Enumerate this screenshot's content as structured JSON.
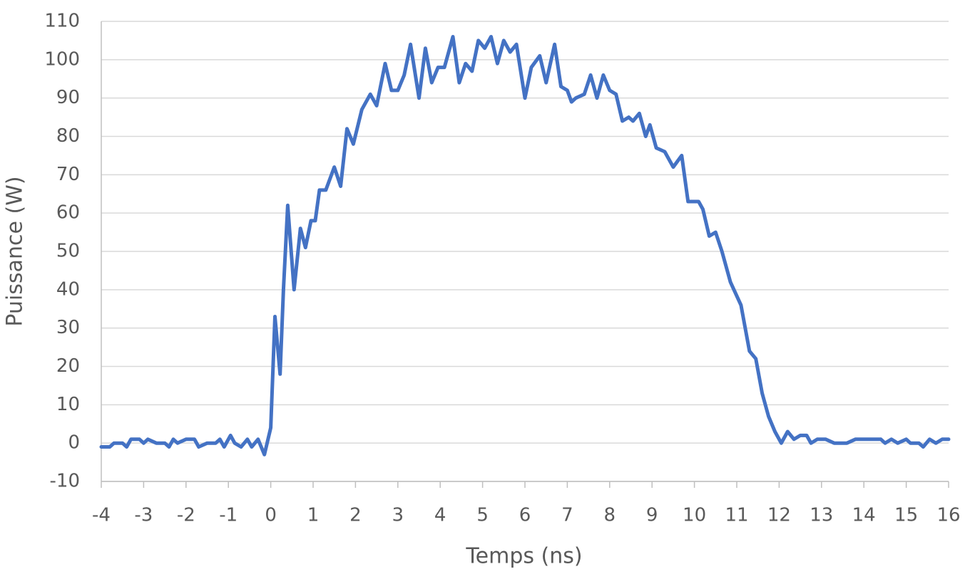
{
  "chart_data": {
    "type": "line",
    "x_label": "Temps (ns)",
    "y_label": "Puissance (W)",
    "xlim": [
      -4,
      16
    ],
    "ylim": [
      -10,
      110
    ],
    "xticks": [
      -4,
      -3,
      -2,
      -1,
      0,
      1,
      2,
      3,
      4,
      5,
      6,
      7,
      8,
      9,
      10,
      11,
      12,
      13,
      14,
      15,
      16
    ],
    "yticks": [
      -10,
      0,
      10,
      20,
      30,
      40,
      50,
      60,
      70,
      80,
      90,
      100,
      110
    ],
    "grid": true,
    "x": [
      -4,
      -3.8,
      -3.7,
      -3.5,
      -3.4,
      -3.3,
      -3.1,
      -3,
      -2.9,
      -2.7,
      -2.5,
      -2.4,
      -2.3,
      -2.2,
      -2,
      -1.8,
      -1.7,
      -1.5,
      -1.3,
      -1.2,
      -1.1,
      -0.95,
      -0.85,
      -0.7,
      -0.55,
      -0.45,
      -0.3,
      -0.15,
      0,
      0.1,
      0.22,
      0.3,
      0.4,
      0.55,
      0.7,
      0.82,
      0.95,
      1.05,
      1.15,
      1.3,
      1.5,
      1.65,
      1.8,
      1.95,
      2.15,
      2.35,
      2.5,
      2.7,
      2.85,
      3,
      3.15,
      3.3,
      3.5,
      3.65,
      3.8,
      3.95,
      4.1,
      4.3,
      4.45,
      4.6,
      4.75,
      4.9,
      5.05,
      5.2,
      5.35,
      5.5,
      5.65,
      5.8,
      6,
      6.15,
      6.35,
      6.5,
      6.7,
      6.85,
      7,
      7.1,
      7.2,
      7.4,
      7.55,
      7.7,
      7.85,
      8,
      8.15,
      8.3,
      8.45,
      8.55,
      8.7,
      8.85,
      8.95,
      9.1,
      9.3,
      9.5,
      9.7,
      9.85,
      10.1,
      10.2,
      10.35,
      10.5,
      10.65,
      10.85,
      11.1,
      11.3,
      11.45,
      11.6,
      11.75,
      11.9,
      12.05,
      12.2,
      12.35,
      12.5,
      12.65,
      12.75,
      12.9,
      13.1,
      13.3,
      13.6,
      13.8,
      14.2,
      14.4,
      14.5,
      14.65,
      14.8,
      15,
      15.1,
      15.3,
      15.4,
      15.55,
      15.7,
      15.85,
      16
    ],
    "series": [
      {
        "color": "#4472c4",
        "values": [
          -1,
          -1,
          0,
          0,
          -1,
          1,
          1,
          0,
          1,
          0,
          0,
          -1,
          1,
          0,
          1,
          1,
          -1,
          0,
          0,
          1,
          -1,
          2,
          0,
          -1,
          1,
          -1,
          1,
          -3,
          4,
          33,
          18,
          40,
          62,
          40,
          56,
          51,
          58,
          58,
          66,
          66,
          72,
          67,
          82,
          78,
          87,
          91,
          88,
          99,
          92,
          92,
          96,
          104,
          90,
          103,
          94,
          98,
          98,
          106,
          94,
          99,
          97,
          105,
          103,
          106,
          99,
          105,
          102,
          104,
          90,
          98,
          101,
          94,
          104,
          93,
          92,
          89,
          90,
          91,
          96,
          90,
          96,
          92,
          91,
          84,
          85,
          84,
          86,
          80,
          83,
          77,
          76,
          72,
          75,
          63,
          63,
          61,
          54,
          55,
          50,
          42,
          36,
          24,
          22,
          13,
          7,
          3,
          0,
          3,
          1,
          2,
          2,
          0,
          1,
          1,
          0,
          0,
          1,
          1,
          1,
          0,
          1,
          0,
          1,
          0,
          0,
          -1,
          1,
          0,
          1,
          1
        ]
      }
    ]
  }
}
